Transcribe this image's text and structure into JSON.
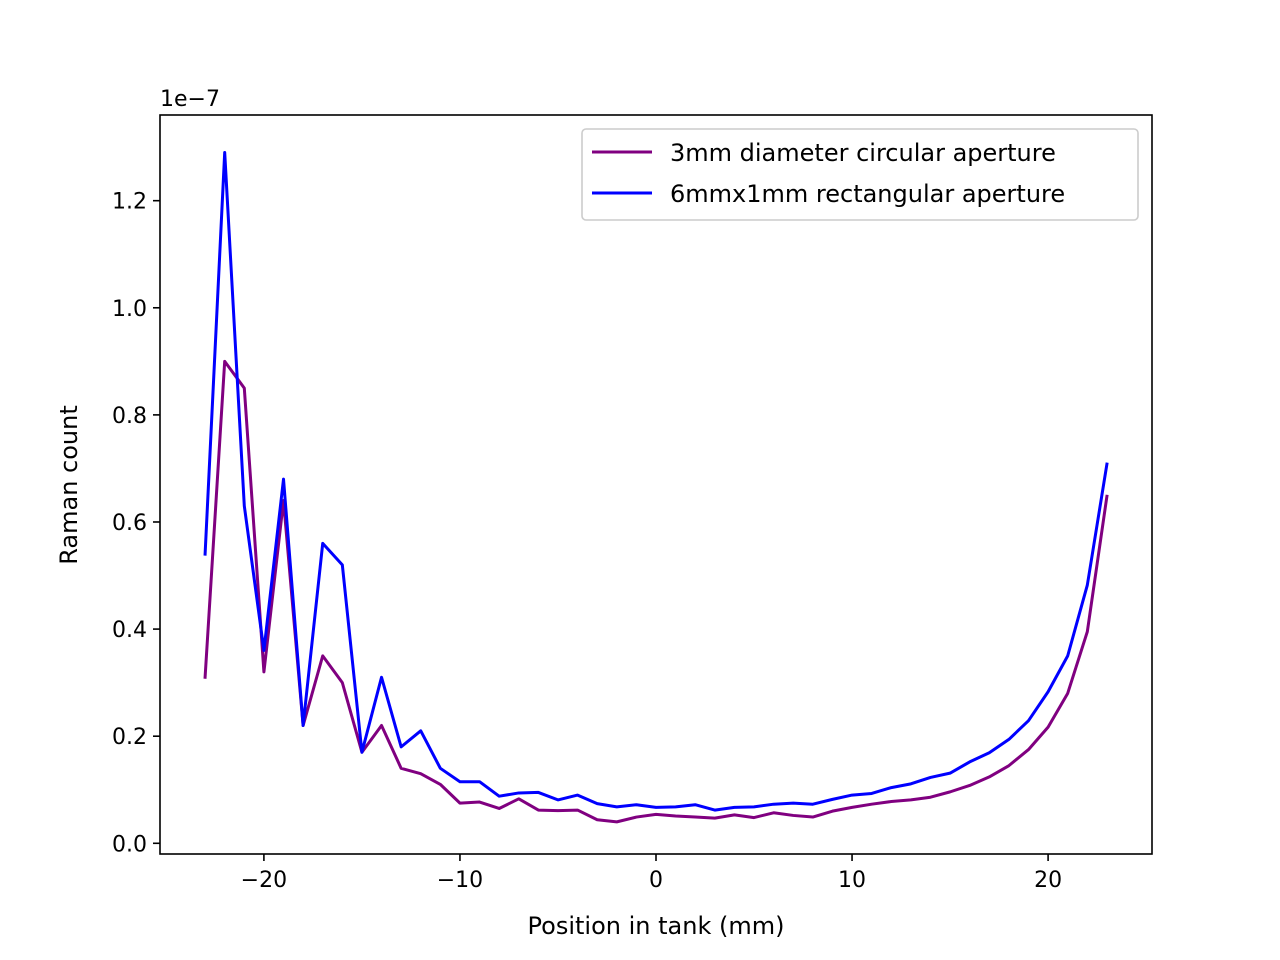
{
  "chart_data": {
    "type": "line",
    "title": "",
    "xlabel": "Position in tank (mm)",
    "ylabel": "Raman count",
    "y_offset_label": "1e−7",
    "xlim": [
      -25.3,
      25.3
    ],
    "ylim": [
      -0.02,
      1.36
    ],
    "x_ticks": [
      -20,
      -10,
      0,
      10,
      20
    ],
    "x_tick_labels": [
      "−20",
      "−10",
      "0",
      "10",
      "20"
    ],
    "y_ticks": [
      0.0,
      0.2,
      0.4,
      0.6,
      0.8,
      1.0,
      1.2
    ],
    "y_tick_labels": [
      "0.0",
      "0.2",
      "0.4",
      "0.6",
      "0.8",
      "1.0",
      "1.2"
    ],
    "grid": false,
    "legend_position": "top-right",
    "x": [
      -23,
      -22,
      -21,
      -20,
      -19,
      -18,
      -17,
      -16,
      -15,
      -14,
      -13,
      -12,
      -11,
      -10,
      -9,
      -8,
      -7,
      -6,
      -5,
      -4,
      -3,
      -2,
      -1,
      0,
      1,
      2,
      3,
      4,
      5,
      6,
      7,
      8,
      9,
      10,
      11,
      12,
      13,
      14,
      15,
      16,
      17,
      18,
      19,
      20,
      21,
      22,
      23
    ],
    "series": [
      {
        "name": "3mm diameter circular aperture",
        "color": "#800080",
        "values": [
          0.31,
          0.9,
          0.85,
          0.32,
          0.64,
          0.22,
          0.35,
          0.3,
          0.17,
          0.22,
          0.14,
          0.13,
          0.11,
          0.075,
          0.077,
          0.065,
          0.083,
          0.062,
          0.061,
          0.062,
          0.044,
          0.04,
          0.049,
          0.054,
          0.051,
          0.049,
          0.047,
          0.053,
          0.048,
          0.057,
          0.052,
          0.049,
          0.06,
          0.067,
          0.073,
          0.078,
          0.081,
          0.086,
          0.096,
          0.108,
          0.124,
          0.145,
          0.175,
          0.217,
          0.28,
          0.395,
          0.648
        ]
      },
      {
        "name": "6mmx1mm rectangular aperture",
        "color": "#0000ff",
        "values": [
          0.54,
          1.29,
          0.63,
          0.36,
          0.68,
          0.22,
          0.56,
          0.52,
          0.17,
          0.31,
          0.18,
          0.21,
          0.14,
          0.115,
          0.115,
          0.088,
          0.094,
          0.095,
          0.081,
          0.09,
          0.074,
          0.068,
          0.072,
          0.067,
          0.068,
          0.072,
          0.062,
          0.067,
          0.068,
          0.073,
          0.075,
          0.073,
          0.082,
          0.09,
          0.093,
          0.104,
          0.111,
          0.123,
          0.131,
          0.152,
          0.169,
          0.194,
          0.229,
          0.283,
          0.35,
          0.482,
          0.708
        ]
      }
    ]
  }
}
